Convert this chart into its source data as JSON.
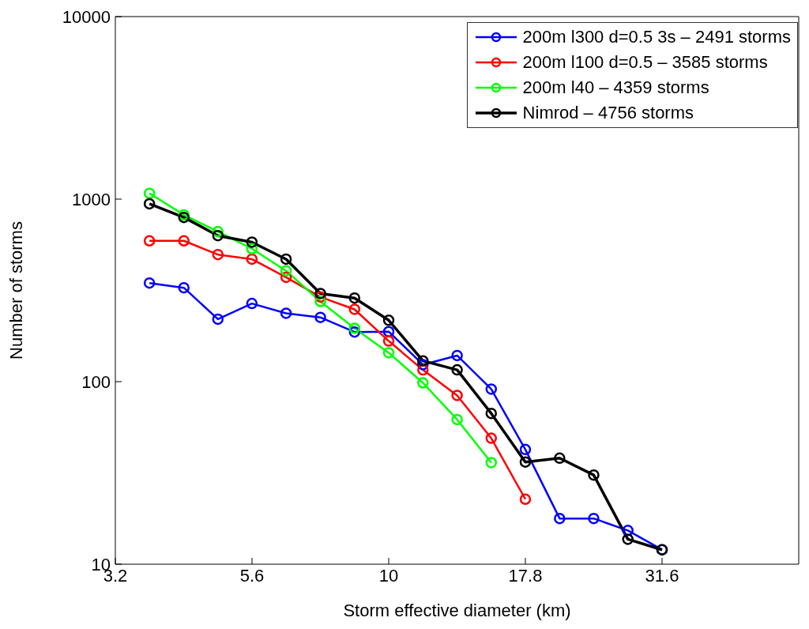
{
  "chart_data": {
    "type": "line",
    "xlabel": "Storm effective diameter (km)",
    "ylabel": "Number of storms",
    "x": [
      3.65,
      4.22,
      4.87,
      5.62,
      6.49,
      7.5,
      8.66,
      10,
      11.55,
      13.34,
      15.4,
      17.78,
      20.54,
      23.71,
      27.38,
      31.62
    ],
    "series": [
      {
        "name": "200m l300 d=0.5 3s – 2491 storms",
        "color": "#0000ff",
        "values": [
          347,
          327,
          220,
          268,
          237,
          225,
          187,
          188,
          124,
          139,
          91,
          42.5,
          17.8,
          17.8,
          15.3,
          12
        ]
      },
      {
        "name": "200m l100 d=0.5 – 3585 storms",
        "color": "#ff0000",
        "values": [
          591,
          591,
          497,
          469,
          373,
          291,
          249,
          167,
          116,
          84,
          49,
          22.7,
          null,
          null,
          null,
          null
        ]
      },
      {
        "name": "200m l40 – 4359 storms",
        "color": "#00ff00",
        "values": [
          1076,
          820,
          664,
          535,
          405,
          275,
          196,
          144,
          98.5,
          62,
          36,
          null,
          null,
          null,
          null,
          null
        ]
      },
      {
        "name": "Nimrod – 4756 storms",
        "color": "#000000",
        "values": [
          943,
          794,
          631,
          581,
          469,
          304,
          287,
          217,
          130,
          116,
          67,
          36.3,
          38.1,
          30.8,
          13.7,
          12
        ]
      }
    ],
    "log": "xy",
    "xlim": [
      3.162,
      56.23
    ],
    "xticks": [
      {
        "value": 3.162,
        "label": "3.2"
      },
      {
        "value": 5.623,
        "label": "5.6"
      },
      {
        "value": 10,
        "label": "10"
      },
      {
        "value": 17.78,
        "label": "17.8"
      },
      {
        "value": 31.62,
        "label": "31.6"
      }
    ],
    "ylim": [
      10,
      10000
    ],
    "yticks": [
      10,
      100,
      1000,
      10000
    ],
    "grid": false,
    "legend": "top right",
    "marker": "circle",
    "line_style": "solid"
  }
}
